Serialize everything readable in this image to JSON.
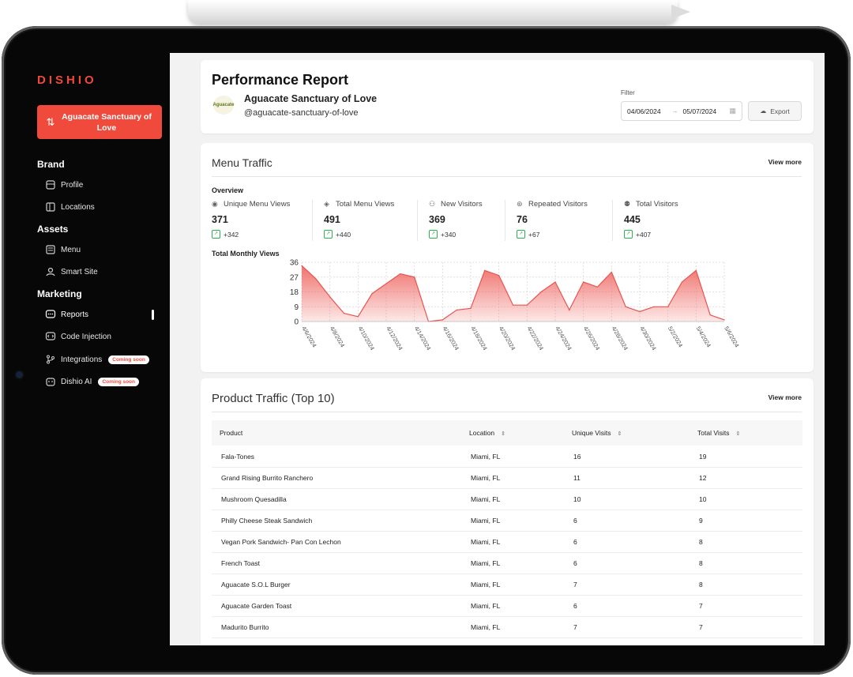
{
  "sidebar": {
    "logo": "DISHIO",
    "brand_button": "Aguacate Sanctuary of Love",
    "sections": {
      "brand": "Brand",
      "assets": "Assets",
      "marketing": "Marketing"
    },
    "items": {
      "profile": "Profile",
      "locations": "Locations",
      "menu": "Menu",
      "smart_site": "Smart Site",
      "reports": "Reports",
      "code_injection": "Code Injection",
      "integrations": "Integrations",
      "dishio_ai": "Dishio AI"
    },
    "coming_soon": "Coming soon"
  },
  "header": {
    "title": "Performance Report",
    "store_name": "Aguacate Sanctuary of Love",
    "store_handle": "@aguacate-sanctuary-of-love",
    "logo_text": "Aguacate",
    "filter_label": "Filter",
    "date_from": "04/06/2024",
    "date_to": "05/07/2024",
    "export_label": "Export"
  },
  "menu_traffic": {
    "title": "Menu Traffic",
    "view_more": "View more",
    "overview_label": "Overview",
    "stats": [
      {
        "label": "Unique Menu Views",
        "value": "371",
        "delta": "+342"
      },
      {
        "label": "Total Menu Views",
        "value": "491",
        "delta": "+440"
      },
      {
        "label": "New Visitors",
        "value": "369",
        "delta": "+340"
      },
      {
        "label": "Repeated Visitors",
        "value": "76",
        "delta": "+67"
      },
      {
        "label": "Total Visitors",
        "value": "445",
        "delta": "+407"
      }
    ],
    "chart_title": "Total Monthly Views"
  },
  "chart_data": {
    "type": "area",
    "title": "Total Monthly Views",
    "x": [
      "4/6/2024",
      "4/7/2024",
      "4/8/2024",
      "4/9/2024",
      "4/10/2024",
      "4/11/2024",
      "4/12/2024",
      "4/13/2024",
      "4/14/2024",
      "4/15/2024",
      "4/16/2024",
      "4/17/2024",
      "4/18/2024",
      "4/19/2024",
      "4/20/2024",
      "4/21/2024",
      "4/22/2024",
      "4/23/2024",
      "4/24/2024",
      "4/25/2024",
      "4/26/2024",
      "4/27/2024",
      "4/28/2024",
      "4/29/2024",
      "4/30/2024",
      "5/1/2024",
      "5/2/2024",
      "5/3/2024",
      "5/4/2024",
      "5/5/2024",
      "5/6/2024"
    ],
    "x_tick_labels": [
      "4/6/2024",
      "4/8/2024",
      "4/10/2024",
      "4/12/2024",
      "4/14/2024",
      "4/16/2024",
      "4/18/2024",
      "4/20/2024",
      "4/22/2024",
      "4/24/2024",
      "4/26/2024",
      "4/28/2024",
      "4/30/2024",
      "5/2/2024",
      "5/4/2024",
      "5/6/2024"
    ],
    "series": [
      {
        "values": [
          34,
          26,
          15,
          5,
          3,
          17,
          23,
          29,
          27,
          0,
          1,
          7,
          8,
          31,
          28,
          10,
          10,
          18,
          24,
          7,
          24,
          21,
          30,
          9,
          6,
          9,
          9,
          24,
          31,
          4,
          1
        ]
      }
    ],
    "ylim": [
      0,
      36
    ],
    "y_ticks": [
      0,
      9,
      18,
      27,
      36
    ],
    "grid": true,
    "color": "#ef6b66"
  },
  "product_traffic": {
    "title": "Product Traffic (Top 10)",
    "view_more": "View more",
    "columns": [
      "Product",
      "Location",
      "Unique Visits",
      "Total Visits"
    ],
    "rows": [
      {
        "product": "Fala-Tones",
        "location": "Miami, FL",
        "unique": "16",
        "total": "19"
      },
      {
        "product": "Grand Rising Burrito Ranchero",
        "location": "Miami, FL",
        "unique": "11",
        "total": "12"
      },
      {
        "product": "Mushroom Quesadilla",
        "location": "Miami, FL",
        "unique": "10",
        "total": "10"
      },
      {
        "product": "Philly Cheese Steak Sandwich",
        "location": "Miami, FL",
        "unique": "6",
        "total": "9"
      },
      {
        "product": "Vegan Pork Sandwich- Pan Con Lechon",
        "location": "Miami, FL",
        "unique": "6",
        "total": "8"
      },
      {
        "product": "French Toast",
        "location": "Miami, FL",
        "unique": "6",
        "total": "8"
      },
      {
        "product": "Aguacate S.O.L Burger",
        "location": "Miami, FL",
        "unique": "7",
        "total": "8"
      },
      {
        "product": "Aguacate Garden Toast",
        "location": "Miami, FL",
        "unique": "6",
        "total": "7"
      },
      {
        "product": "Madurito Burrito",
        "location": "Miami, FL",
        "unique": "7",
        "total": "7"
      }
    ]
  }
}
